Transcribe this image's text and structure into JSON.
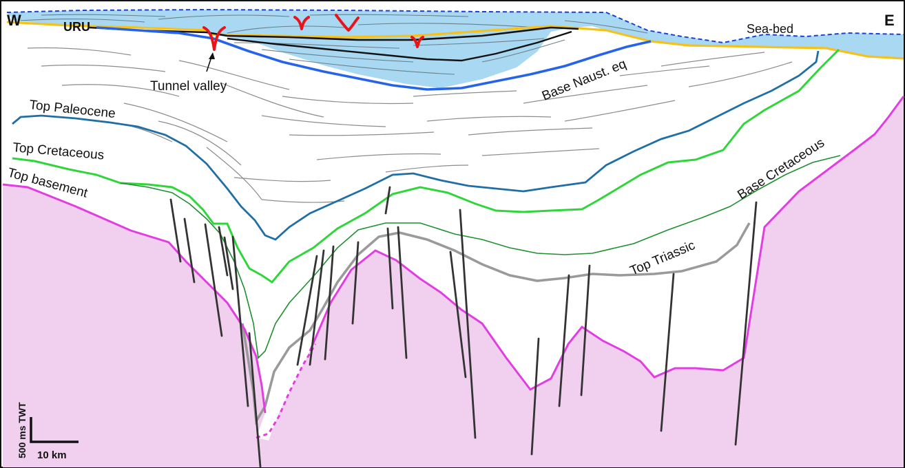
{
  "compass": {
    "west": "W",
    "east": "E"
  },
  "labels": {
    "uru": "URU",
    "sea_bed": "Sea-bed",
    "tunnel_valley": "Tunnel valley",
    "base_naust": "Base Naust. eq",
    "top_paleocene": "Top Paleocene",
    "top_cretaceous": "Top Cretaceous",
    "top_basement": "Top basement",
    "base_cretaceous": "Base Cretaceous",
    "top_triassic": "Top Triassic"
  },
  "scale_bar": {
    "vertical": "500 ms TWT",
    "horizontal": "10 km"
  },
  "colors": {
    "sea": "#a8d8f2",
    "sea_bed": "#1c3fcf",
    "uru": "#f6c21a",
    "base_naust": "#2563eb",
    "top_paleocene": "#1f6fa6",
    "top_cretaceous": "#2fd63a",
    "base_cretaceous": "#1e8f2e",
    "top_triassic": "#9a9a9a",
    "top_basement": "#e23de0",
    "basement_fill": "#f0d0ee",
    "faults": "#333333",
    "reflectors": "#8c8c8c",
    "tunnel_valley_symbols": "#e8141a"
  }
}
